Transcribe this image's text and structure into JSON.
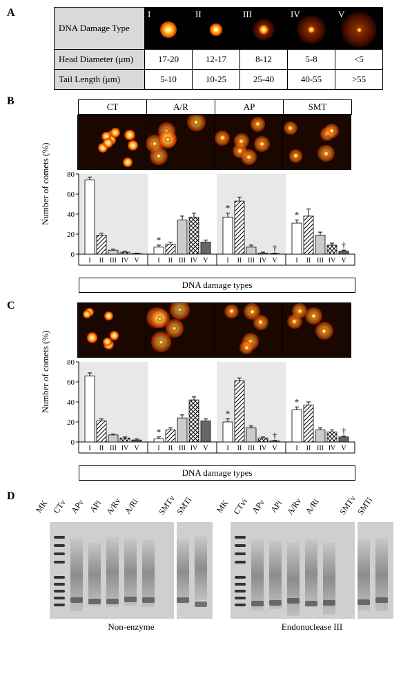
{
  "panelA": {
    "label": "A",
    "rowHeader": "DNA Damage Type",
    "types": [
      "I",
      "II",
      "III",
      "IV",
      "V"
    ],
    "headRow": {
      "label": "Head Diameter (μm)",
      "vals": [
        "17-20",
        "12-17",
        "8-12",
        "5-8",
        "<5"
      ]
    },
    "tailRow": {
      "label": "Tail Length (μm)",
      "vals": [
        "5-10",
        "10-25",
        "25-40",
        "40-55",
        ">55"
      ]
    },
    "cometVis": [
      {
        "head": 24,
        "tail": 8
      },
      {
        "head": 18,
        "tail": 20
      },
      {
        "head": 14,
        "tail": 32
      },
      {
        "head": 10,
        "tail": 42
      },
      {
        "head": 7,
        "tail": 52
      }
    ]
  },
  "groups": [
    "CT",
    "A/R",
    "AP",
    "SMT"
  ],
  "damageTypes": [
    "I",
    "II",
    "III",
    "IV",
    "V"
  ],
  "barFills": [
    "#ffffff",
    "hatch",
    "#cccccc",
    "cross",
    "#666666"
  ],
  "yTicks": [
    0,
    20,
    40,
    60,
    80
  ],
  "ylabel": "Number of comets (%)",
  "xlabel": "DNA damage types",
  "panelB": {
    "label": "B",
    "data": {
      "CT": {
        "vals": [
          74,
          19,
          4,
          2,
          0.5
        ],
        "err": [
          3,
          2,
          1,
          1,
          0.5
        ],
        "marks": [
          null,
          null,
          null,
          null,
          null
        ]
      },
      "A/R": {
        "vals": [
          7,
          10,
          34,
          37,
          12
        ],
        "err": [
          2,
          2,
          4,
          4,
          2
        ],
        "marks": [
          "*",
          null,
          null,
          null,
          null
        ]
      },
      "AP": {
        "vals": [
          37,
          53,
          7,
          1,
          0.5
        ],
        "err": [
          4,
          4,
          2,
          1,
          0.5
        ],
        "marks": [
          "*",
          null,
          null,
          null,
          "†"
        ]
      },
      "SMT": {
        "vals": [
          31,
          38,
          19,
          9,
          3
        ],
        "err": [
          3,
          7,
          3,
          2,
          1
        ],
        "marks": [
          "*",
          null,
          null,
          null,
          "†"
        ]
      }
    }
  },
  "panelC": {
    "label": "C",
    "data": {
      "CT": {
        "vals": [
          66,
          21,
          7,
          4,
          2
        ],
        "err": [
          3,
          2,
          1,
          1,
          1
        ],
        "marks": [
          null,
          null,
          null,
          null,
          null
        ]
      },
      "A/R": {
        "vals": [
          3,
          12,
          24,
          42,
          21
        ],
        "err": [
          2,
          2,
          3,
          3,
          2
        ],
        "marks": [
          "*",
          null,
          null,
          null,
          null
        ]
      },
      "AP": {
        "vals": [
          20,
          61,
          14,
          4,
          1
        ],
        "err": [
          3,
          3,
          2,
          1,
          0.5
        ],
        "marks": [
          "*",
          null,
          null,
          null,
          "†"
        ]
      },
      "SMT": {
        "vals": [
          32,
          37,
          12,
          10,
          5
        ],
        "err": [
          3,
          3,
          2,
          2,
          1
        ],
        "marks": [
          "*",
          null,
          null,
          null,
          "†"
        ]
      }
    }
  },
  "panelD": {
    "label": "D",
    "lanes": [
      "MK",
      "CTv",
      "APv",
      "APi",
      "A/Rv",
      "A/Ri",
      "SMTv",
      "SMTi"
    ],
    "lanes2": [
      "MK",
      "CTvi",
      "APv",
      "APi",
      "A/Rv",
      "A/Ri",
      "SMTv",
      "SMTi"
    ],
    "caption1": "Non-enzyme",
    "caption2": "Endonuclease III",
    "mkBands": [
      20,
      32,
      44,
      56,
      78,
      88,
      98,
      108,
      118
    ],
    "spacerAfter": 6
  },
  "colors": {
    "barStroke": "#000000",
    "axis": "#000000",
    "shadedBg": "#dcdcdc"
  }
}
